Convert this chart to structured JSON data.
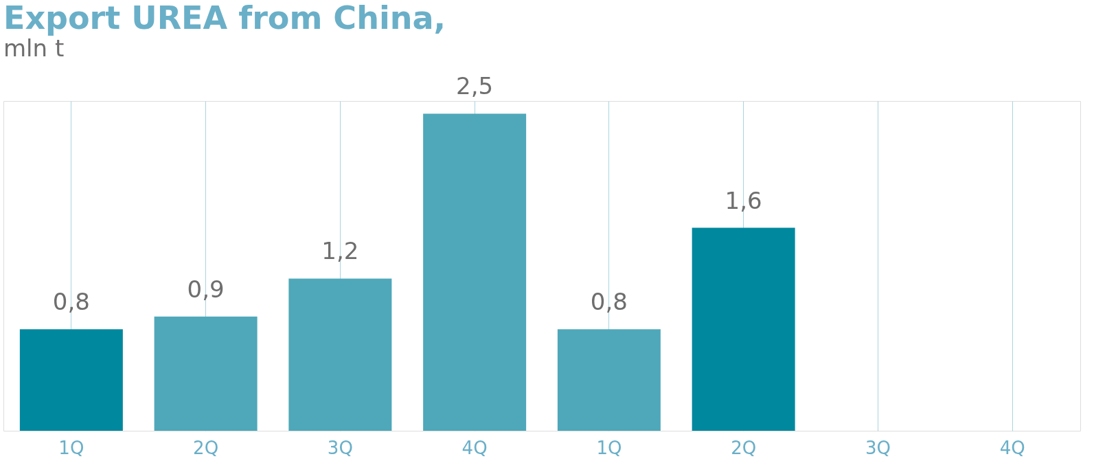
{
  "chart_data": {
    "type": "bar",
    "title": "Export UREA  from China,",
    "subtitle": "mln t",
    "categories": [
      "1Q",
      "2Q",
      "3Q",
      "4Q",
      "1Q",
      "2Q",
      "3Q",
      "4Q"
    ],
    "values": [
      0.8,
      0.9,
      1.2,
      2.5,
      0.8,
      1.6,
      null,
      null
    ],
    "colors": [
      "#00889f",
      "#4ea8b9",
      "#4ea8b9",
      "#4ea8b9",
      "#4ea8b9",
      "#00889f",
      "#4ea8b9",
      "#4ea8b9"
    ],
    "value_labels": [
      "0,8",
      "0,9",
      "1,2",
      "2,5",
      "0,8",
      "1,6",
      null,
      null
    ],
    "grid": "x"
  }
}
